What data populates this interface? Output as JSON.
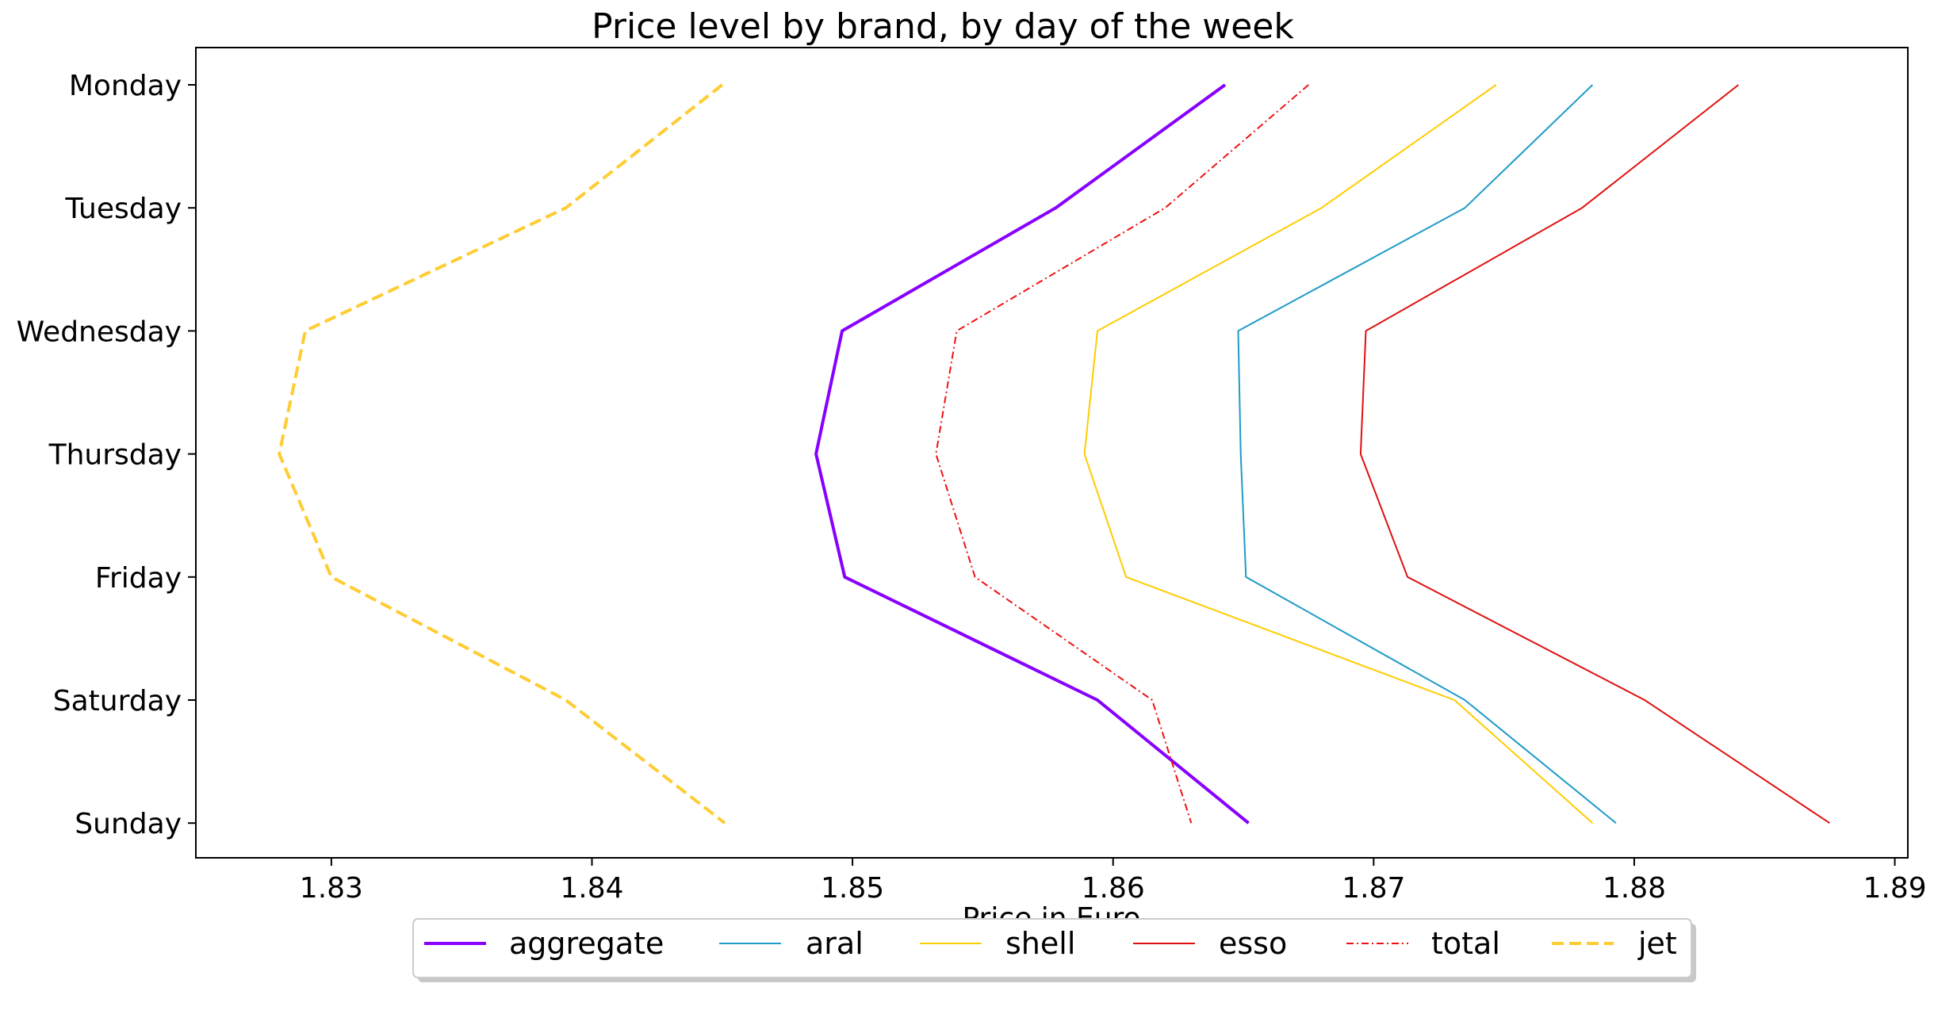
{
  "chart_data": {
    "type": "line",
    "title": "Price level by brand, by day of the week",
    "xlabel": "Price in Euro",
    "ylabel": "",
    "orientation": "horizontal-values",
    "categories": [
      "Monday",
      "Tuesday",
      "Wednesday",
      "Thursday",
      "Friday",
      "Saturday",
      "Sunday"
    ],
    "xlim": [
      1.8248,
      1.8905
    ],
    "xticks": [
      1.83,
      1.84,
      1.85,
      1.86,
      1.87,
      1.88,
      1.89
    ],
    "xtick_labels": [
      "1.83",
      "1.84",
      "1.85",
      "1.86",
      "1.87",
      "1.88",
      "1.89"
    ],
    "grid": false,
    "legend_position": "bottom-center, below the axes",
    "series": [
      {
        "name": "aggregate",
        "color": "#8800ff",
        "style": "solid",
        "width": 4,
        "values": [
          1.8643,
          1.8578,
          1.8496,
          1.8486,
          1.8497,
          1.8594,
          1.8652
        ]
      },
      {
        "name": "aral",
        "color": "#1f9bc8",
        "style": "solid",
        "width": 2,
        "values": [
          1.8784,
          1.8735,
          1.8648,
          1.8649,
          1.8651,
          1.8735,
          1.8793
        ]
      },
      {
        "name": "shell",
        "color": "#ffcc00",
        "style": "solid",
        "width": 2,
        "values": [
          1.8747,
          1.868,
          1.8594,
          1.8589,
          1.8605,
          1.8731,
          1.8784
        ]
      },
      {
        "name": "esso",
        "color": "#e01010",
        "style": "solid",
        "width": 2,
        "values": [
          1.884,
          1.878,
          1.8697,
          1.8695,
          1.8713,
          1.8804,
          1.8875
        ]
      },
      {
        "name": "total",
        "color": "#ee1111",
        "style": "dashdot",
        "width": 2,
        "values": [
          1.8675,
          1.862,
          1.854,
          1.8532,
          1.8547,
          1.8615,
          1.863
        ]
      },
      {
        "name": "jet",
        "color": "#ffcc33",
        "style": "dashed",
        "width": 4,
        "values": [
          1.845,
          1.839,
          1.829,
          1.828,
          1.83,
          1.839,
          1.8451
        ]
      }
    ]
  }
}
